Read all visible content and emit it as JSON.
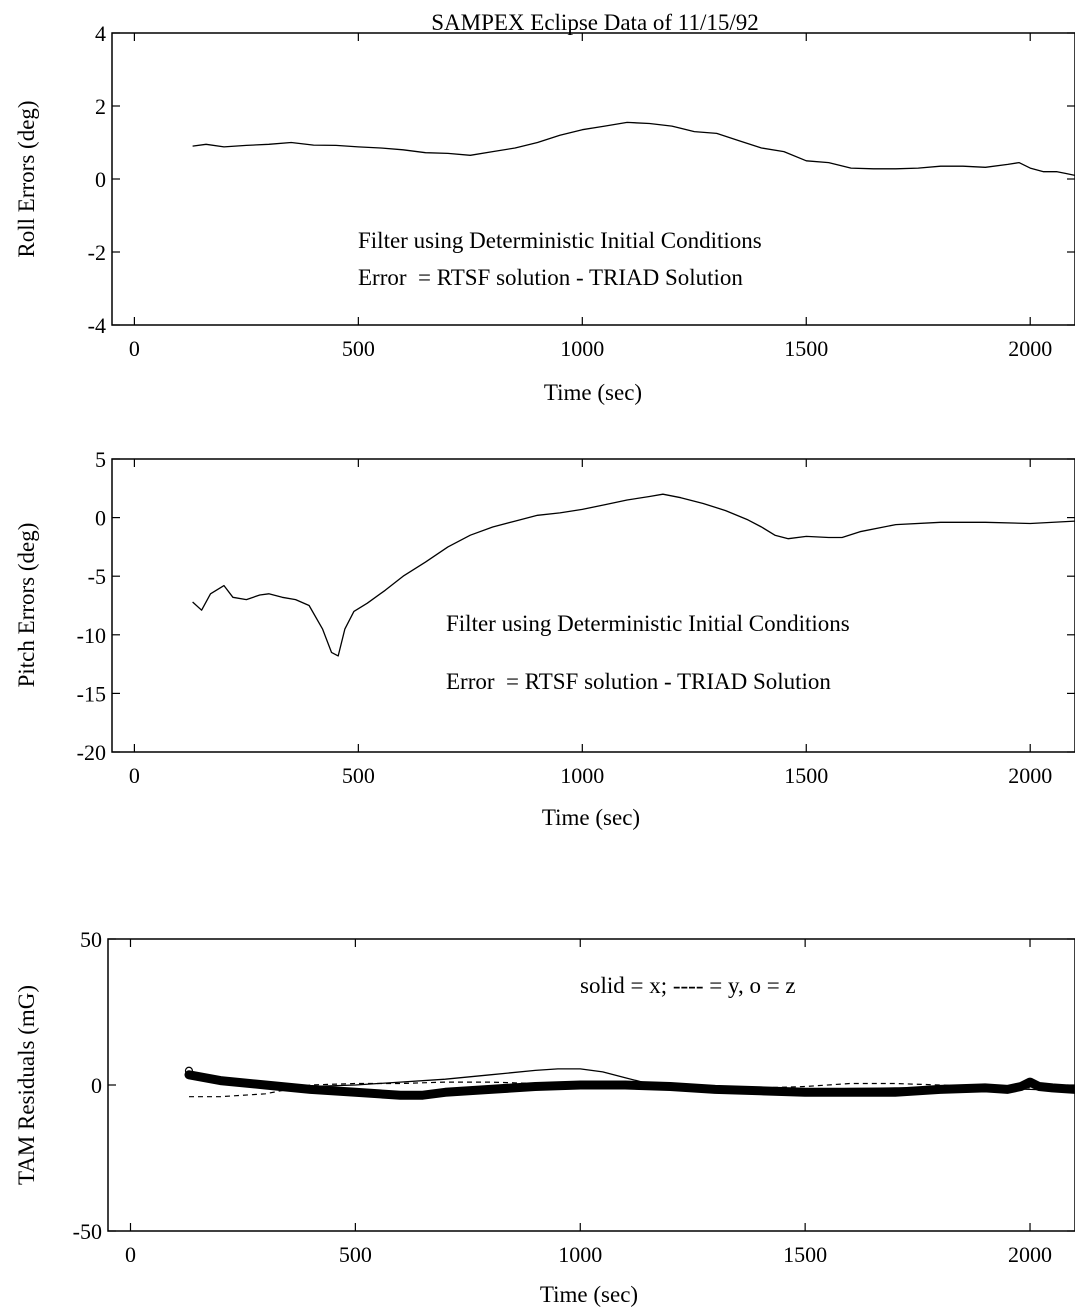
{
  "chart_data": [
    {
      "type": "line",
      "title": "SAMPEX Eclipse Data of 11/15/92",
      "xlabel": "Time (sec)",
      "ylabel": "Roll Errors (deg)",
      "xlim": [
        -50,
        2100
      ],
      "ylim": [
        -4,
        4
      ],
      "xticks": [
        "0",
        "500",
        "1000",
        "1500",
        "2000"
      ],
      "xtick_values": [
        0,
        500,
        1000,
        1500,
        2000
      ],
      "yticks": [
        "-4",
        "-2",
        "0",
        "2",
        "4"
      ],
      "ytick_values": [
        -4,
        -2,
        0,
        2,
        4
      ],
      "annotations": [
        "Filter using Deterministic Initial Conditions",
        "Error  = RTSF solution - TRIAD Solution"
      ],
      "series": [
        {
          "style": "solid",
          "x": [
            130,
            160,
            200,
            250,
            300,
            350,
            400,
            450,
            500,
            550,
            600,
            650,
            700,
            750,
            800,
            850,
            900,
            950,
            1000,
            1050,
            1100,
            1150,
            1200,
            1250,
            1300,
            1350,
            1400,
            1450,
            1500,
            1550,
            1600,
            1650,
            1700,
            1750,
            1800,
            1850,
            1900,
            1950,
            1975,
            2000,
            2030,
            2060,
            2080,
            2100
          ],
          "y": [
            0.9,
            0.95,
            0.88,
            0.92,
            0.95,
            1.0,
            0.93,
            0.92,
            0.88,
            0.85,
            0.8,
            0.72,
            0.7,
            0.65,
            0.75,
            0.85,
            1.0,
            1.2,
            1.35,
            1.45,
            1.55,
            1.52,
            1.45,
            1.3,
            1.25,
            1.05,
            0.85,
            0.75,
            0.5,
            0.45,
            0.3,
            0.28,
            0.28,
            0.3,
            0.35,
            0.35,
            0.32,
            0.4,
            0.45,
            0.3,
            0.2,
            0.2,
            0.15,
            0.1
          ]
        }
      ]
    },
    {
      "type": "line",
      "xlabel": "Time (sec)",
      "ylabel": "Pitch Errors (deg)",
      "xlim": [
        -50,
        2100
      ],
      "ylim": [
        -20,
        5
      ],
      "xticks": [
        "0",
        "500",
        "1000",
        "1500",
        "2000"
      ],
      "xtick_values": [
        0,
        500,
        1000,
        1500,
        2000
      ],
      "yticks": [
        "-20",
        "-15",
        "-10",
        "-5",
        "0",
        "5"
      ],
      "ytick_values": [
        -20,
        -15,
        -10,
        -5,
        0,
        5
      ],
      "annotations": [
        "Filter using Deterministic Initial Conditions",
        "Error  = RTSF solution - TRIAD Solution"
      ],
      "series": [
        {
          "style": "solid",
          "x": [
            130,
            150,
            170,
            200,
            220,
            250,
            280,
            300,
            330,
            360,
            390,
            420,
            440,
            455,
            470,
            490,
            520,
            560,
            600,
            650,
            700,
            750,
            800,
            850,
            900,
            950,
            1000,
            1050,
            1100,
            1150,
            1180,
            1220,
            1270,
            1320,
            1370,
            1400,
            1430,
            1460,
            1500,
            1550,
            1580,
            1620,
            1700,
            1800,
            1900,
            2000,
            2100
          ],
          "y": [
            -7.2,
            -7.9,
            -6.5,
            -5.8,
            -6.8,
            -7.0,
            -6.6,
            -6.5,
            -6.8,
            -7.0,
            -7.5,
            -9.5,
            -11.5,
            -11.8,
            -9.5,
            -8.0,
            -7.3,
            -6.2,
            -5.0,
            -3.8,
            -2.5,
            -1.5,
            -0.8,
            -0.3,
            0.2,
            0.4,
            0.7,
            1.1,
            1.5,
            1.8,
            2.0,
            1.7,
            1.2,
            0.6,
            -0.2,
            -0.8,
            -1.5,
            -1.8,
            -1.6,
            -1.7,
            -1.7,
            -1.2,
            -0.6,
            -0.4,
            -0.4,
            -0.5,
            -0.3
          ]
        }
      ]
    },
    {
      "type": "line",
      "xlabel": "Time (sec)",
      "ylabel": "TAM Residuals (mG)",
      "xlim": [
        -50,
        2100
      ],
      "ylim": [
        -50,
        50
      ],
      "xticks": [
        "0",
        "500",
        "1000",
        "1500",
        "2000"
      ],
      "xtick_values": [
        0,
        500,
        1000,
        1500,
        2000
      ],
      "yticks": [
        "-50",
        "0",
        "50"
      ],
      "ytick_values": [
        -50,
        0,
        50
      ],
      "annotations": [
        "solid = x; ---- = y, o = z"
      ],
      "series": [
        {
          "style": "solid",
          "x": [
            130,
            200,
            300,
            400,
            500,
            600,
            700,
            800,
            900,
            950,
            1000,
            1050,
            1100,
            1150,
            1200,
            1300,
            1400,
            1500,
            1600,
            1700,
            1800,
            1900,
            2000,
            2100
          ],
          "y": [
            3,
            2,
            0.5,
            -0.5,
            0,
            1,
            2,
            3.5,
            5,
            5.5,
            5.5,
            4.5,
            2.5,
            0.5,
            -0.5,
            -1,
            -1.5,
            -1.5,
            -1.2,
            -1,
            -1,
            -1,
            -1.5,
            -2
          ]
        },
        {
          "style": "dashed",
          "x": [
            130,
            200,
            300,
            350,
            400,
            500,
            600,
            700,
            800,
            900,
            1000,
            1100,
            1200,
            1300,
            1400,
            1500,
            1600,
            1700,
            1800,
            1900,
            2000,
            2100
          ],
          "y": [
            -4,
            -4,
            -3,
            -1.5,
            0,
            0.5,
            0.5,
            1,
            1,
            0.5,
            0,
            -0.5,
            -1,
            -1.2,
            -1,
            -0.5,
            0.5,
            0.5,
            0,
            -0.5,
            -1,
            -1.5
          ]
        },
        {
          "style": "marker-o",
          "x": [
            130,
            200,
            300,
            400,
            500,
            600,
            650,
            700,
            800,
            900,
            1000,
            1100,
            1200,
            1300,
            1400,
            1500,
            1600,
            1700,
            1800,
            1900,
            1950,
            1980,
            2000,
            2020,
            2050,
            2100
          ],
          "y": [
            3.5,
            1.5,
            0,
            -1.5,
            -2.5,
            -3.5,
            -3.5,
            -2.5,
            -1.5,
            -0.5,
            0,
            0,
            -0.5,
            -1.5,
            -2,
            -2.5,
            -2.5,
            -2.5,
            -1.5,
            -1,
            -1.5,
            -0.5,
            1,
            -0.5,
            -1,
            -1.5
          ]
        }
      ]
    }
  ]
}
